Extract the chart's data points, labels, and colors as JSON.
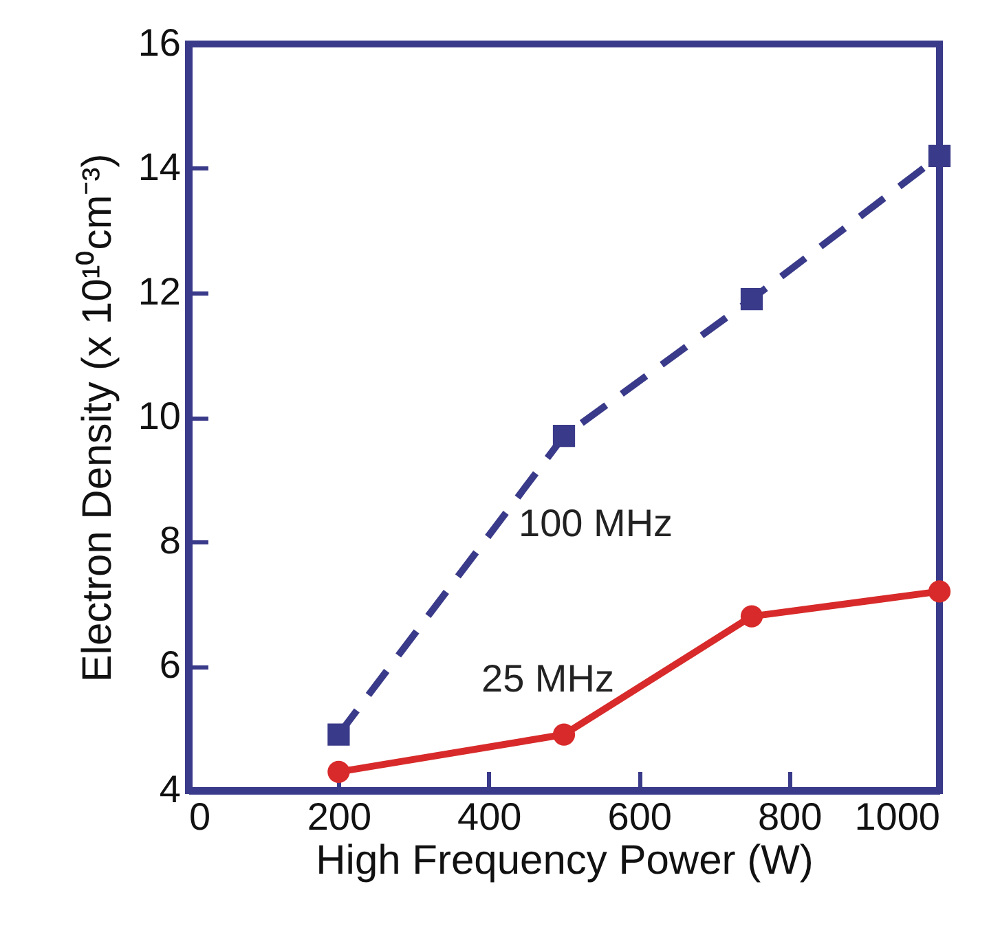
{
  "chart_data": {
    "type": "line",
    "xlabel": "High Frequency Power (W)",
    "ylabel": "Electron Density (x 10¹⁰cm⁻³)",
    "x": [
      200,
      500,
      750,
      1000
    ],
    "series": [
      {
        "name": "100 MHz",
        "color": "#3a3a8a",
        "values": [
          4.9,
          9.7,
          11.9,
          14.2
        ],
        "marker": "square",
        "line_style": "dashed"
      },
      {
        "name": "25 MHz",
        "color": "#d82a2a",
        "values": [
          4.3,
          4.9,
          6.8,
          7.2
        ],
        "marker": "circle",
        "line_style": "solid"
      }
    ],
    "xlim": [
      0,
      1000
    ],
    "xticks": [
      0,
      200,
      400,
      600,
      800,
      1000
    ],
    "ylim": [
      4,
      16
    ],
    "yticks": [
      4,
      6,
      8,
      10,
      12,
      14,
      16
    ]
  }
}
